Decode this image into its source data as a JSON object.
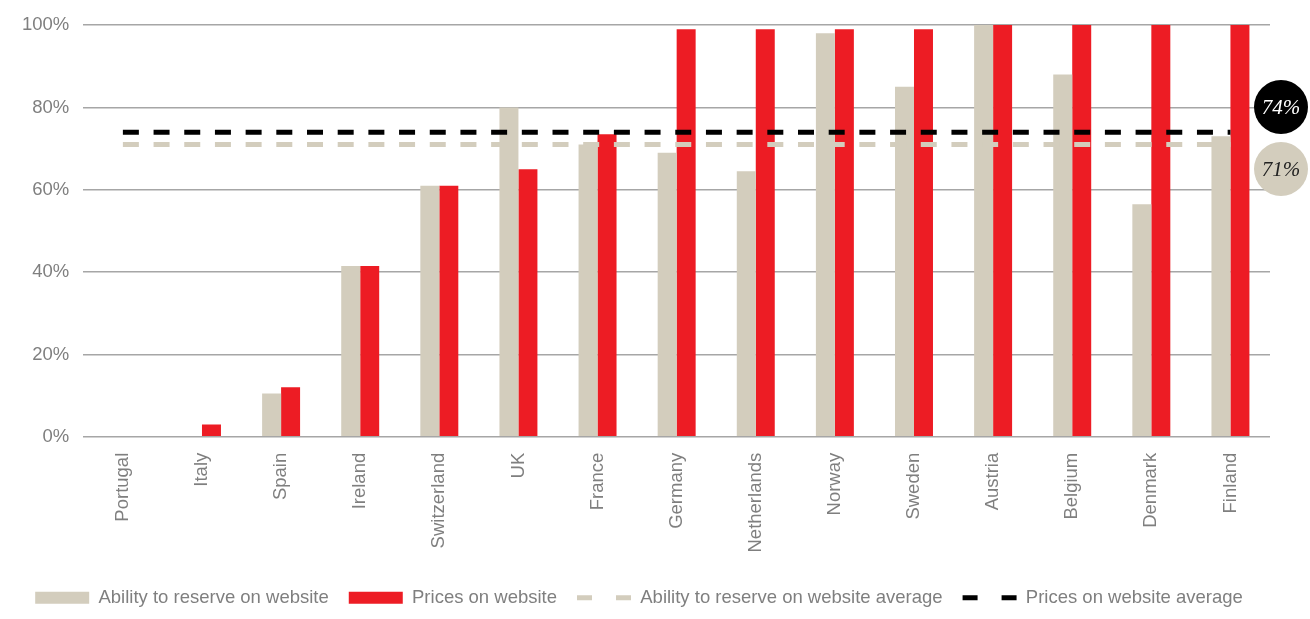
{
  "chart_data": {
    "type": "bar",
    "categories": [
      "Portugal",
      "Italy",
      "Spain",
      "Ireland",
      "Switzerland",
      "UK",
      "France",
      "Germany",
      "Netherlands",
      "Norway",
      "Sweden",
      "Austria",
      "Belgium",
      "Denmark",
      "Finland"
    ],
    "series": [
      {
        "name": "Ability to reserve on website",
        "color": "#d3cdbd",
        "values": [
          0,
          0,
          10.5,
          41.5,
          61,
          80,
          71,
          69,
          64.5,
          98,
          85,
          100,
          88,
          56.5,
          73
        ]
      },
      {
        "name": "Prices on website",
        "color": "#ed1c24",
        "values": [
          0,
          3,
          12,
          41.5,
          61,
          65,
          73.5,
          99,
          99,
          99,
          99,
          100,
          100,
          100,
          100
        ]
      },
      {
        "name": "Ability to reserve on website average",
        "type": "line",
        "color": "#d3cdbd",
        "values": [
          71,
          71,
          71,
          71,
          71,
          71,
          71,
          71,
          71,
          71,
          71,
          71,
          71,
          71,
          71
        ]
      },
      {
        "name": "Prices on website average",
        "type": "line",
        "color": "#000000",
        "values": [
          74,
          74,
          74,
          74,
          74,
          74,
          74,
          74,
          74,
          74,
          74,
          74,
          74,
          74,
          74
        ]
      }
    ],
    "ylim": [
      0,
      100
    ],
    "yticks": [
      {
        "value": 0,
        "label": "0%"
      },
      {
        "value": 20,
        "label": "20%"
      },
      {
        "value": 40,
        "label": "40%"
      },
      {
        "value": 60,
        "label": "60%"
      },
      {
        "value": 80,
        "label": "80%"
      },
      {
        "value": 100,
        "label": "100%"
      }
    ],
    "grid": "y",
    "legend": "bottom",
    "line_style": "dashed",
    "marker": "none",
    "annotations": [
      {
        "text": "74%",
        "x": "Finland",
        "y": 74
      },
      {
        "text": "71%",
        "x": "Finland",
        "y": 71
      }
    ]
  }
}
